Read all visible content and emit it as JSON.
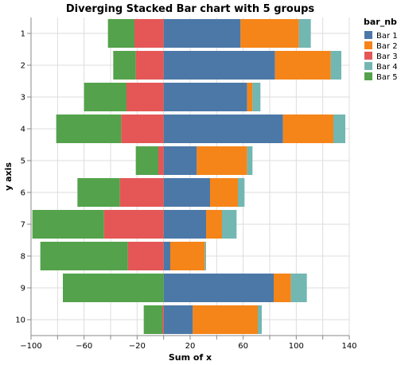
{
  "chart_data": {
    "type": "bar",
    "orientation": "horizontal",
    "stacked": "diverging",
    "title": "Diverging Stacked Bar chart with 5 groups",
    "xlabel": "Sum of x",
    "ylabel": "y axis",
    "xlim": [
      -100,
      140
    ],
    "xticks": [
      -100,
      -60,
      -20,
      20,
      60,
      100,
      140
    ],
    "tick_labels_x": [
      "−100",
      "−60",
      "−20",
      "20",
      "60",
      "100",
      "140"
    ],
    "categories": [
      "1",
      "2",
      "3",
      "4",
      "5",
      "6",
      "7",
      "8",
      "9",
      "10"
    ],
    "legend_title": "bar_nb",
    "legend_position": "top-right",
    "grid": true,
    "series": [
      {
        "name": "Bar 1",
        "color": "#4c78a8",
        "values": [
          58,
          84,
          63,
          90,
          25,
          35,
          32,
          5,
          83,
          22
        ]
      },
      {
        "name": "Bar 2",
        "color": "#f58518",
        "values": [
          44,
          42,
          4,
          38,
          38,
          21,
          12,
          26,
          13,
          49
        ]
      },
      {
        "name": "Bar 3",
        "color": "#e45756",
        "values": [
          -22,
          -21,
          -28,
          -32,
          -4,
          -33,
          -45,
          -27,
          0,
          -1
        ]
      },
      {
        "name": "Bar 4",
        "color": "#72b7b2",
        "values": [
          9,
          8,
          6,
          9,
          4,
          5,
          11,
          1,
          12,
          3
        ]
      },
      {
        "name": "Bar 5",
        "color": "#54a24b",
        "values": [
          -20,
          -17,
          -32,
          -49,
          -17,
          -32,
          -54,
          -66,
          -76,
          -14
        ]
      }
    ]
  }
}
